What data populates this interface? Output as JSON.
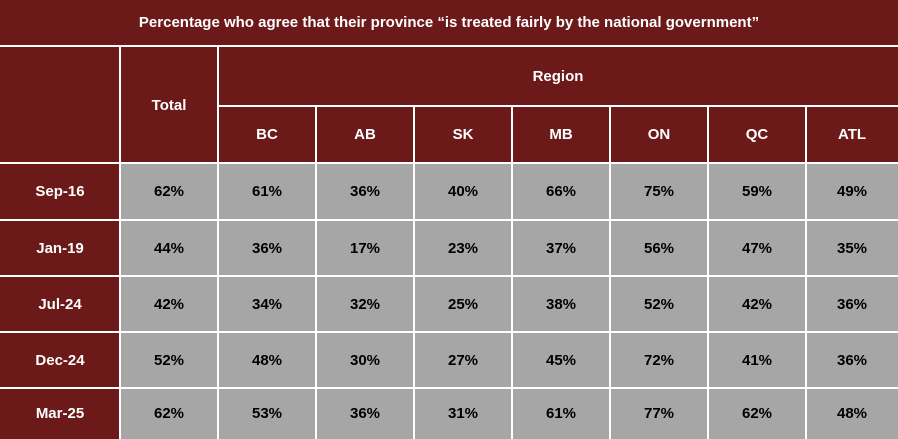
{
  "title": "Percentage who agree that their province “is treated fairly by the national government”",
  "chart_data": {
    "type": "table",
    "header_total": "Total",
    "header_group": "Region",
    "regions": [
      "BC",
      "AB",
      "SK",
      "MB",
      "ON",
      "QC",
      "ATL"
    ],
    "rows": [
      {
        "label": "Sep-16",
        "total": "62%",
        "values": [
          "61%",
          "36%",
          "40%",
          "66%",
          "75%",
          "59%",
          "49%"
        ]
      },
      {
        "label": "Jan-19",
        "total": "44%",
        "values": [
          "36%",
          "17%",
          "23%",
          "37%",
          "56%",
          "47%",
          "35%"
        ]
      },
      {
        "label": "Jul-24",
        "total": "42%",
        "values": [
          "34%",
          "32%",
          "25%",
          "38%",
          "52%",
          "42%",
          "36%"
        ]
      },
      {
        "label": "Dec-24",
        "total": "52%",
        "values": [
          "48%",
          "30%",
          "27%",
          "45%",
          "72%",
          "41%",
          "36%"
        ]
      },
      {
        "label": "Mar-25",
        "total": "62%",
        "values": [
          "53%",
          "36%",
          "31%",
          "61%",
          "77%",
          "62%",
          "48%"
        ]
      }
    ]
  },
  "colors": {
    "header_bg": "#6b1a19",
    "data_bg": "#a6a6a6",
    "grid": "#ffffff",
    "header_text": "#ffffff",
    "data_text": "#000000"
  }
}
